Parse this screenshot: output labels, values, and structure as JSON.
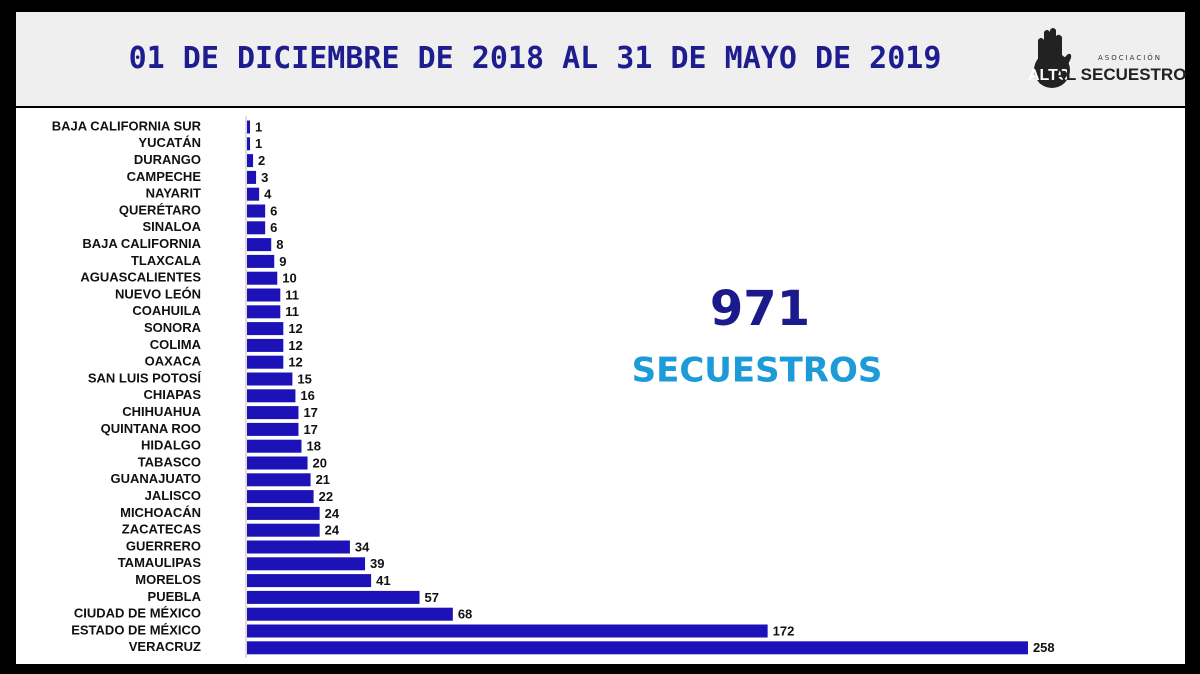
{
  "chart_data": {
    "type": "bar",
    "orientation": "horizontal",
    "title": "01 DE DICIEMBRE DE 2018 AL 31 DE MAYO DE 2019",
    "logo": {
      "top": "ASOCIACIÓN",
      "alto": "ALTO",
      "rest": "AL SECUESTRO"
    },
    "total": "971",
    "total_label": "SECUESTROS",
    "color": "#1c12b8",
    "categories": [
      "BAJA CALIFORNIA SUR",
      "YUCATÁN",
      "DURANGO",
      "CAMPECHE",
      "NAYARIT",
      "QUERÉTARO",
      "SINALOA",
      "BAJA CALIFORNIA",
      "TLAXCALA",
      "AGUASCALIENTES",
      "NUEVO LEÓN",
      "COAHUILA",
      "SONORA",
      "COLIMA",
      "OAXACA",
      "SAN LUIS POTOSÍ",
      "CHIAPAS",
      "CHIHUAHUA",
      "QUINTANA ROO",
      "HIDALGO",
      "TABASCO",
      "GUANAJUATO",
      "JALISCO",
      "MICHOACÁN",
      "ZACATECAS",
      "GUERRERO",
      "TAMAULIPAS",
      "MORELOS",
      "PUEBLA",
      "CIUDAD DE MÉXICO",
      "ESTADO DE MÉXICO",
      "VERACRUZ"
    ],
    "values": [
      1,
      1,
      2,
      3,
      4,
      6,
      6,
      8,
      9,
      10,
      11,
      11,
      12,
      12,
      12,
      15,
      16,
      17,
      17,
      18,
      20,
      21,
      22,
      24,
      24,
      34,
      39,
      41,
      57,
      68,
      172,
      258
    ]
  }
}
